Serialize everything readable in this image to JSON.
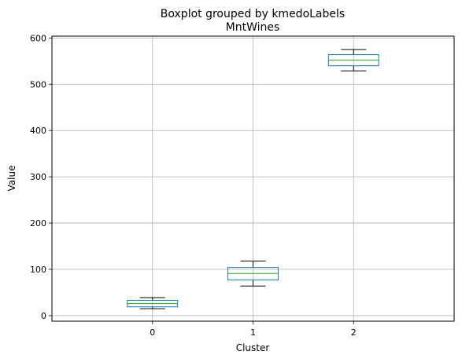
{
  "chart_data": {
    "type": "box",
    "suptitle": "Boxplot grouped by kmedoLabels",
    "title": "MntWines",
    "xlabel": "Cluster",
    "ylabel": "Value",
    "categories": [
      "0",
      "1",
      "2"
    ],
    "ylim": [
      -12,
      604
    ],
    "yticks": [
      0,
      100,
      200,
      300,
      400,
      500,
      600
    ],
    "grid": true,
    "boxes": [
      {
        "category": "0",
        "whislo": 15,
        "q1": 19,
        "med": 26,
        "q3": 33,
        "whishi": 39
      },
      {
        "category": "1",
        "whislo": 64,
        "q1": 77,
        "med": 91,
        "q3": 104,
        "whishi": 118
      },
      {
        "category": "2",
        "whislo": 529,
        "q1": 540,
        "med": 552,
        "q3": 564,
        "whishi": 575
      }
    ],
    "colors": {
      "box": "#1f77b4",
      "median": "#2ca02c",
      "whisker": "#000000",
      "grid": "#b0b0b0"
    }
  }
}
